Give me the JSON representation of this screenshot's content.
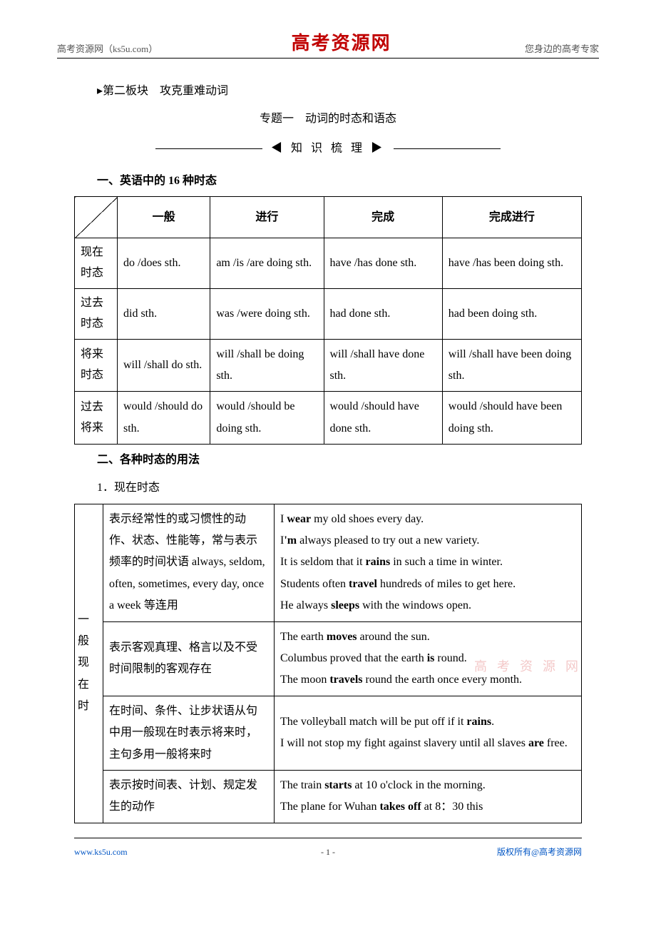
{
  "header": {
    "left": "高考资源网（ks5u.com）",
    "center": "高考资源网",
    "right": "您身边的高考专家"
  },
  "block": {
    "section_line": "▸第二板块　攻克重难动词",
    "topic": "专题一　动词的时态和语态",
    "divider": "◀ 知 识 梳 理 ▶",
    "h1": "一、英语中的 16 种时态",
    "h2": "二、各种时态的用法",
    "h2_sub": "1．现在时态"
  },
  "table1": {
    "columns": [
      "一般",
      "进行",
      "完成",
      "完成进行"
    ],
    "rows": [
      {
        "label_l1": "现在",
        "label_l2": "时态",
        "cells": [
          "do /does sth.",
          "am /is /are doing sth.",
          "have /has done sth.",
          "have /has been doing sth."
        ]
      },
      {
        "label_l1": "过去",
        "label_l2": "时态",
        "cells": [
          "did sth.",
          "was /were doing sth.",
          "had done sth.",
          "had been doing sth."
        ]
      },
      {
        "label_l1": "将来",
        "label_l2": "时态",
        "cells": [
          "will /shall do sth.",
          "will /shall be doing sth.",
          "will /shall have done sth.",
          "will /shall have been doing sth."
        ]
      },
      {
        "label_l1": "过去",
        "label_l2": "将来",
        "cells": [
          "would /should do sth.",
          "would /should be doing sth.",
          "would /should have done sth.",
          "would /should have been doing sth."
        ]
      }
    ]
  },
  "table2": {
    "rowlabel": "一般现在时",
    "rows": [
      {
        "desc": "表示经常性的或习惯性的动作、状态、性能等，常与表示频率的时间状语 always, seldom, often, sometimes, every day, once a week 等连用",
        "examples": [
          "I <b>wear</b> my old shoes every day.",
          "I<b>'m</b> always pleased to try out a new variety.",
          "It is seldom that it <b>rains</b> in such a time in winter.",
          "Students often <b>travel</b> hundreds of miles to get here.",
          "He always <b>sleeps</b> with the windows open."
        ]
      },
      {
        "desc": "表示客观真理、格言以及不受时间限制的客观存在",
        "examples": [
          "The earth <b>moves</b> around the sun.",
          "Columbus proved that the earth <b>is</b> round.",
          "The moon <b>travels</b> round the earth once every month."
        ]
      },
      {
        "desc": "在时间、条件、让步状语从句中用一般现在时表示将来时，主句多用一般将来时",
        "examples": [
          "The volleyball match will be put off if it <b>rains</b>.",
          "I will not stop my fight against slavery until all slaves <b>are</b> free."
        ]
      },
      {
        "desc": "表示按时间表、计划、规定发生的动作",
        "examples": [
          "The train <b>starts</b> at 10 o'clock in the morning.",
          "The plane for Wuhan <b>takes off</b> at 8：30 this"
        ]
      }
    ]
  },
  "footer": {
    "left": "www.ks5u.com",
    "center": "- 1 -",
    "right": "版权所有@高考资源网"
  },
  "watermark_text": "高考资源网"
}
